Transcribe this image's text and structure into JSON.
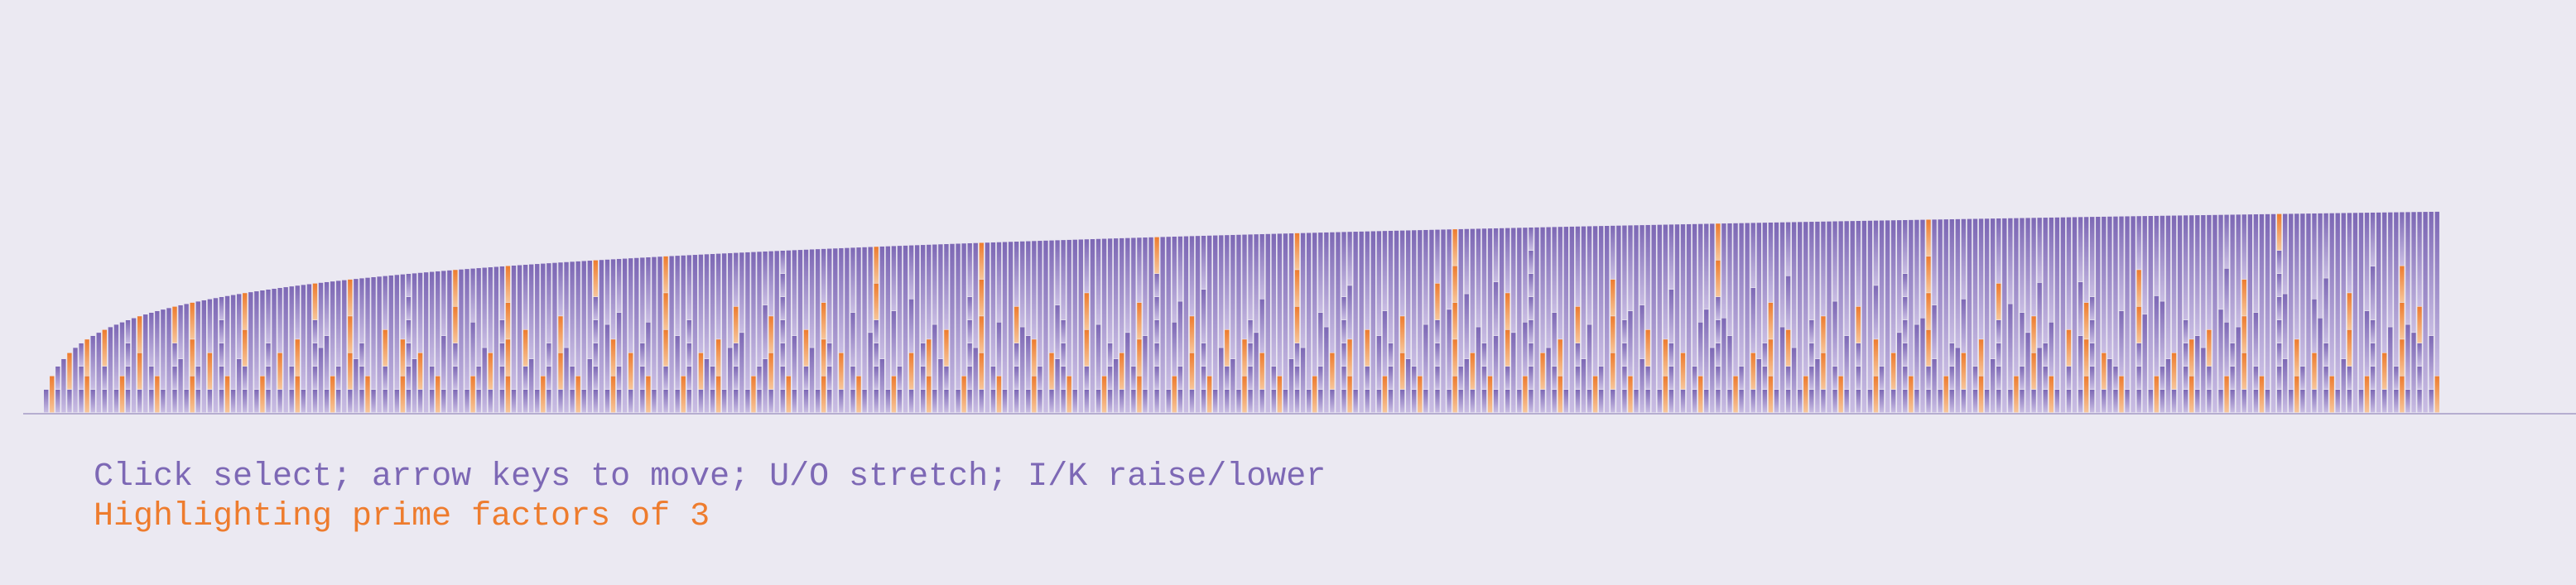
{
  "visualization": {
    "type": "prime-factor-stack-bars",
    "first_n": 2,
    "last_n": 411,
    "highlight_prime": 3
  },
  "caption": {
    "instructions": "Click select; arrow keys to move; U/O stretch; I/K raise/lower",
    "highlight": "Highlighting prime factors of 3"
  },
  "colors": {
    "background": "#ebe9f2",
    "bar_dark": "#7d68b5",
    "bar_light": "#c9bde3",
    "highlight_dark": "#ee7c2e",
    "highlight_light": "#f7c59a",
    "baseline": "#b6aed0",
    "instructions_text": "#7d68b5",
    "highlight_text": "#ee7c2e"
  }
}
